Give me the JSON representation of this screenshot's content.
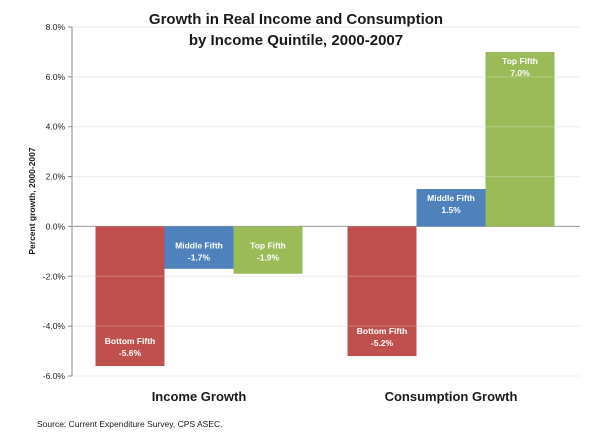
{
  "chart_data": {
    "type": "bar",
    "title_lines": [
      "Growth in Real Income and Consumption",
      "by Income Quintile, 2000-2007"
    ],
    "ylabel": "Percent growth, 2000-2007",
    "ylim": [
      -6,
      8
    ],
    "yticks": [
      -6,
      -4,
      -2,
      0,
      2,
      4,
      6,
      8
    ],
    "ytick_labels": [
      "-6.0%",
      "-4.0%",
      "-2.0%",
      "0.0%",
      "2.0%",
      "4.0%",
      "6.0%",
      "8.0%"
    ],
    "grid": true,
    "categories": [
      "Income Growth",
      "Consumption Growth"
    ],
    "series": [
      {
        "name": "Bottom Fifth",
        "color": "#c0504d",
        "values": [
          -5.6,
          -5.2
        ],
        "value_labels": [
          "-5.6%",
          "-5.2%"
        ]
      },
      {
        "name": "Middle Fifth",
        "color": "#4f81bd",
        "values": [
          -1.7,
          1.5
        ],
        "value_labels": [
          "-1.7%",
          "1.5%"
        ]
      },
      {
        "name": "Top Fifth",
        "color": "#9bbb59",
        "values": [
          -1.9,
          7.0
        ],
        "value_labels": [
          "-1.9%",
          "7.0%"
        ]
      }
    ],
    "source": "Source: Current Expenditure Survey, CPS ASEC."
  }
}
